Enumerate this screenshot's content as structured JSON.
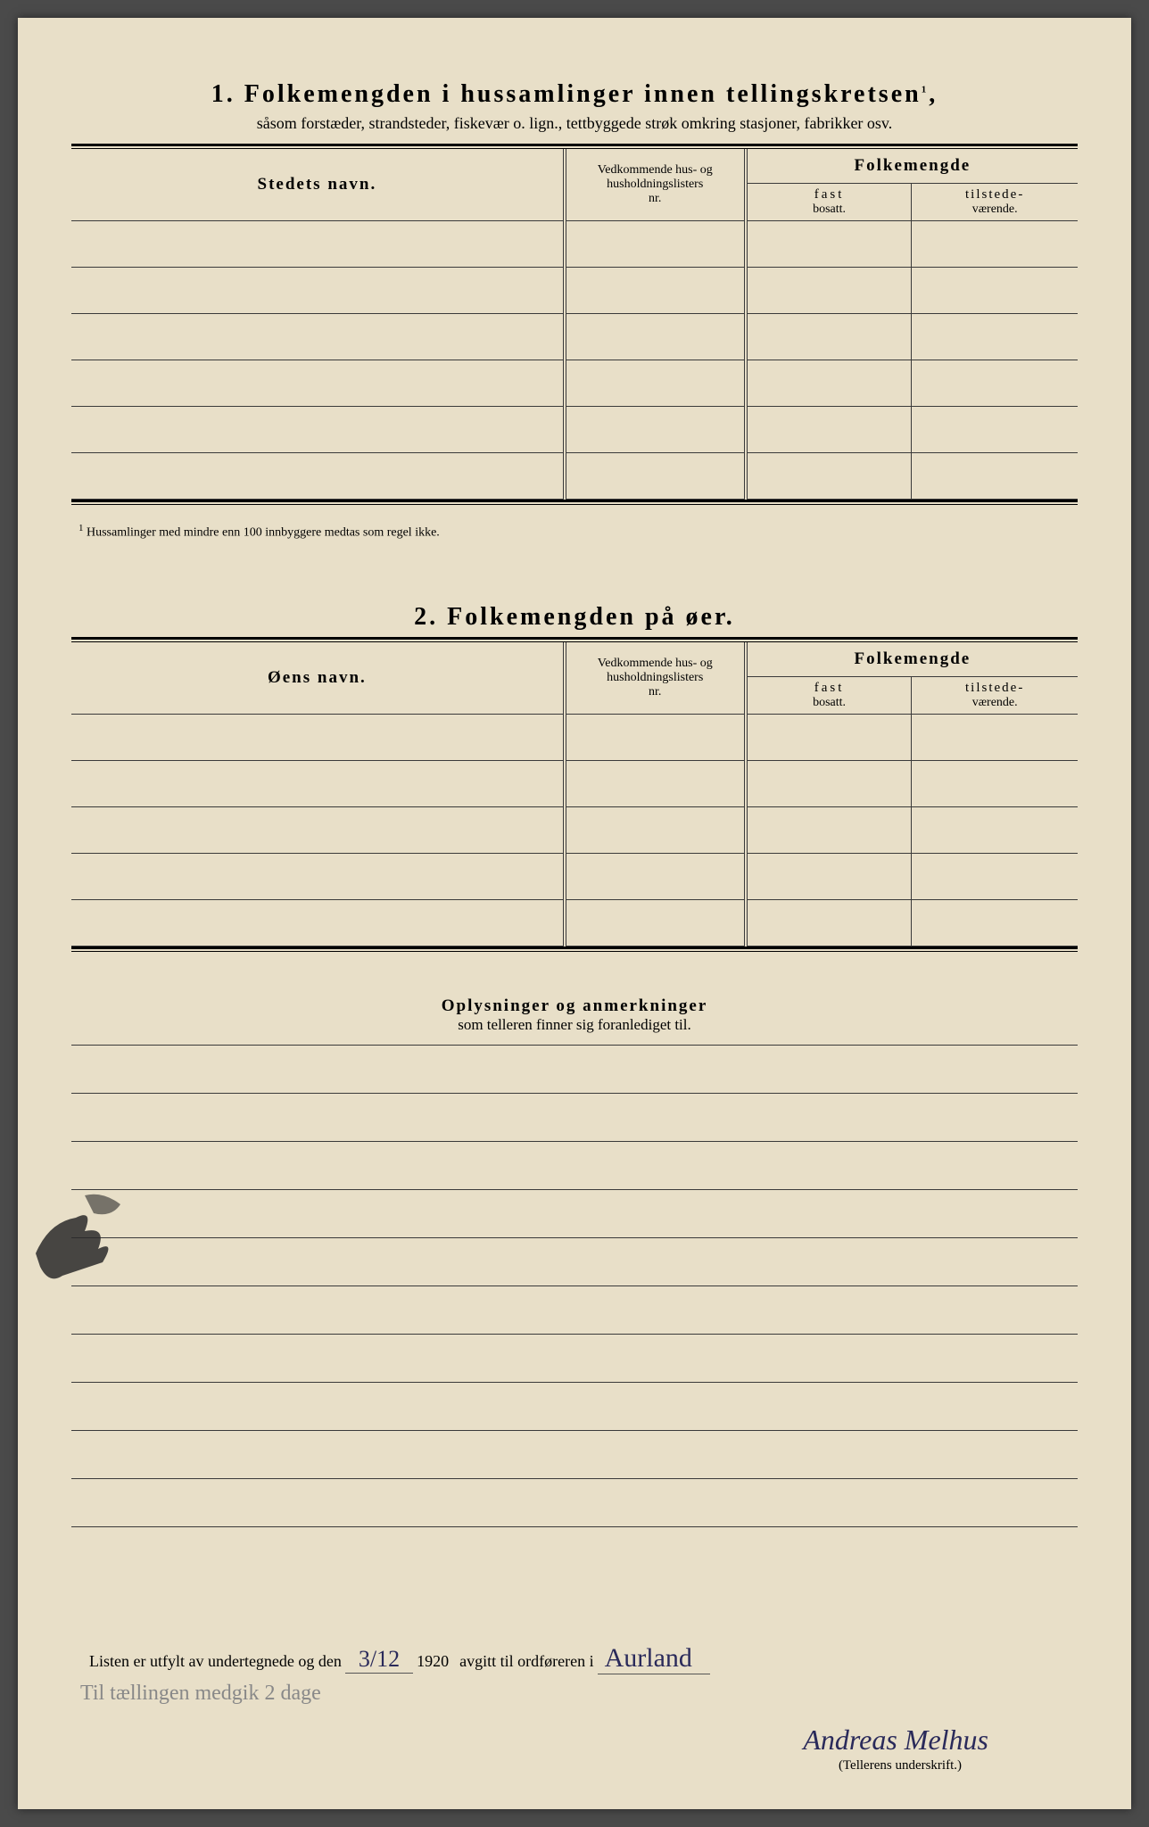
{
  "section1": {
    "number": "1.",
    "title": "Folkemengden i hussamlinger innen tellingskretsen",
    "title_sup": "1",
    "subtitle": "såsom forstæder, strandsteder, fiskevær o. lign., tettbyggede strøk omkring stasjoner, fabrikker osv.",
    "col_name": "Stedets navn.",
    "col_hus_line1": "Vedkommende hus- og",
    "col_hus_line2": "husholdningslisters",
    "col_hus_line3": "nr.",
    "col_folkemengde": "Folkemengde",
    "col_fast_line1": "fast",
    "col_fast_line2": "bosatt.",
    "col_tilstede_line1": "tilstede-",
    "col_tilstede_line2": "værende.",
    "footnote_num": "1",
    "footnote": "Hussamlinger med mindre enn 100 innbyggere medtas som regel ikke.",
    "row_count": 6
  },
  "section2": {
    "number": "2.",
    "title": "Folkemengden på øer.",
    "col_name": "Øens navn.",
    "col_hus_line1": "Vedkommende hus- og",
    "col_hus_line2": "husholdningslisters",
    "col_hus_line3": "nr.",
    "col_folkemengde": "Folkemengde",
    "col_fast_line1": "fast",
    "col_fast_line2": "bosatt.",
    "col_tilstede_line1": "tilstede-",
    "col_tilstede_line2": "værende.",
    "row_count": 5
  },
  "section3": {
    "title": "Oplysninger og anmerkninger",
    "subtitle": "som telleren finner sig foranlediget til.",
    "row_count": 10
  },
  "signature": {
    "text_before": "Listen er utfylt av undertegnede og den",
    "date": "3/12",
    "year": "1920",
    "text_after": "avgitt til ordføreren i",
    "place": "Aurland",
    "name": "Andreas Melhus",
    "label": "(Tellerens underskrift.)",
    "handwritten": "Til tællingen medgik 2 dage"
  },
  "colors": {
    "page_bg": "#e8dfc8",
    "text": "#1a1a1a",
    "ink": "#2a2a5a",
    "pencil": "#888888"
  }
}
